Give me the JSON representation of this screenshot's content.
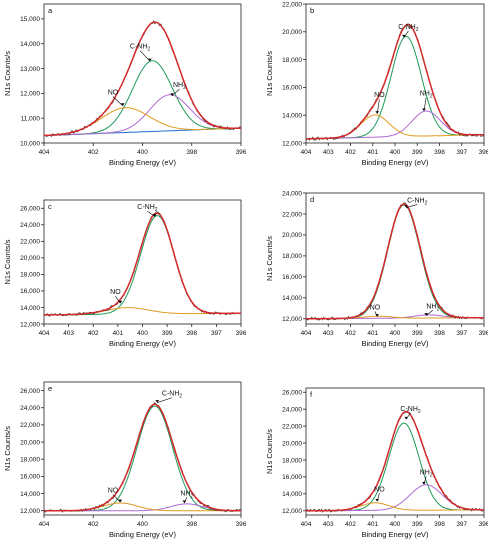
{
  "colors": {
    "measured": "#3a3a3a",
    "envelope": "#d42a2a",
    "c_nh2": "#1f9a5a",
    "nh2": "#b06ad4",
    "no": "#e39a1d",
    "background": "#1f6fd0",
    "axis": "#222222"
  },
  "chart_data": [
    {
      "panel": "a",
      "type": "line",
      "xlabel": "Binding Energy (eV)",
      "ylabel": "N1s Counts/s",
      "xlim": [
        404,
        396
      ],
      "x_ticks": [
        404,
        402,
        400,
        398,
        396
      ],
      "x_tick_labels": [
        "404",
        "402",
        "400",
        "398",
        "396"
      ],
      "ylim": [
        10000,
        15600
      ],
      "y_ticks": [
        10000,
        11000,
        12000,
        13000,
        14000,
        15000
      ],
      "y_tick_labels": [
        "10,000",
        "11,000",
        "12,000",
        "13,000",
        "14,000",
        "15,000"
      ],
      "baseline": {
        "x": [
          404,
          396
        ],
        "y": [
          10300,
          10600
        ]
      },
      "components": [
        {
          "name": "C-NH2",
          "label": "C-NH",
          "label_sub": "2",
          "color_key": "c_nh2",
          "center": 399.6,
          "height": 2850,
          "fwhm": 1.9,
          "label_at": [
            400.1,
            13800
          ],
          "arrow_to": [
            399.7,
            13300
          ]
        },
        {
          "name": "NH2",
          "label": "NH",
          "label_sub": "2",
          "color_key": "nh2",
          "center": 398.9,
          "height": 1450,
          "fwhm": 1.9,
          "label_at": [
            398.5,
            12250
          ],
          "arrow_to": [
            398.8,
            11900
          ]
        },
        {
          "name": "NO",
          "label": "NO",
          "label_sub": "",
          "color_key": "no",
          "center": 400.7,
          "height": 1000,
          "fwhm": 2.3,
          "label_at": [
            401.2,
            11950
          ],
          "arrow_to": [
            400.8,
            11500
          ]
        }
      ],
      "show_background": true,
      "show_components": true
    },
    {
      "panel": "b",
      "type": "line",
      "xlabel": "Binding Energy (eV)",
      "ylabel": "N1s Counts/s",
      "xlim": [
        404,
        396
      ],
      "x_ticks": [
        404,
        403,
        402,
        401,
        400,
        399,
        398,
        397,
        396
      ],
      "x_tick_labels": [
        "404",
        "403",
        "402",
        "401",
        "400",
        "399",
        "398",
        "397",
        "396"
      ],
      "ylim": [
        12000,
        22000
      ],
      "y_ticks": [
        12000,
        14000,
        16000,
        18000,
        20000,
        22000
      ],
      "y_tick_labels": [
        "12,000",
        "14,000",
        "16,000",
        "18,000",
        "20,000",
        "22,000"
      ],
      "baseline": {
        "x": [
          404,
          396
        ],
        "y": [
          12300,
          12600
        ]
      },
      "components": [
        {
          "name": "C-NH2",
          "label": "C-NH",
          "label_sub": "2",
          "color_key": "c_nh2",
          "center": 399.5,
          "height": 7200,
          "fwhm": 1.6,
          "label_at": [
            399.4,
            20200
          ],
          "arrow_to": [
            399.6,
            19600
          ]
        },
        {
          "name": "NH2",
          "label": "NH",
          "label_sub": "2",
          "color_key": "nh2",
          "center": 398.6,
          "height": 1800,
          "fwhm": 1.5,
          "label_at": [
            398.6,
            15400
          ],
          "arrow_to": [
            398.7,
            14300
          ]
        },
        {
          "name": "NO",
          "label": "NO",
          "label_sub": "",
          "color_key": "no",
          "center": 400.9,
          "height": 1600,
          "fwhm": 1.5,
          "label_at": [
            400.7,
            15300
          ],
          "arrow_to": [
            400.8,
            14100
          ]
        }
      ],
      "show_background": false,
      "show_components": true
    },
    {
      "panel": "c",
      "type": "line",
      "xlabel": "Binding Energy (eV)",
      "ylabel": "N1s Counts/s",
      "xlim": [
        404,
        396
      ],
      "x_ticks": [
        404,
        403,
        402,
        401,
        400,
        399,
        398,
        397,
        396
      ],
      "x_tick_labels": [
        "404",
        "403",
        "402",
        "401",
        "400",
        "399",
        "398",
        "397",
        "396"
      ],
      "ylim": [
        12000,
        27000
      ],
      "y_ticks": [
        12000,
        14000,
        16000,
        18000,
        20000,
        22000,
        24000,
        26000
      ],
      "y_tick_labels": [
        "12,000",
        "14,000",
        "16,000",
        "18,000",
        "20,000",
        "22,000",
        "24,000",
        "26,000"
      ],
      "baseline": {
        "x": [
          404,
          396
        ],
        "y": [
          13100,
          13300
        ]
      },
      "components": [
        {
          "name": "C-NH2",
          "label": "C-NH",
          "label_sub": "2",
          "color_key": "c_nh2",
          "center": 399.4,
          "height": 11900,
          "fwhm": 1.6,
          "label_at": [
            399.8,
            25900
          ],
          "arrow_to": [
            399.5,
            25000
          ]
        },
        {
          "name": "NO",
          "label": "NO",
          "label_sub": "",
          "color_key": "no",
          "center": 400.6,
          "height": 800,
          "fwhm": 2.0,
          "label_at": [
            401.1,
            15600
          ],
          "arrow_to": [
            400.9,
            14500
          ]
        }
      ],
      "show_background": false,
      "show_components": true
    },
    {
      "panel": "d",
      "type": "line",
      "xlabel": "Binding Energy (eV)",
      "ylabel": "N1s Counts/s",
      "xlim": [
        404,
        396
      ],
      "x_ticks": [
        404,
        403,
        402,
        401,
        400,
        399,
        398,
        397,
        396
      ],
      "x_tick_labels": [
        "404",
        "403",
        "402",
        "401",
        "400",
        "399",
        "398",
        "397",
        "396"
      ],
      "ylim": [
        11500,
        24000
      ],
      "y_ticks": [
        12000,
        14000,
        16000,
        18000,
        20000,
        22000,
        24000
      ],
      "y_tick_labels": [
        "12,000",
        "14,000",
        "16,000",
        "18,000",
        "20,000",
        "22,000",
        "24,000"
      ],
      "baseline": {
        "x": [
          404,
          396
        ],
        "y": [
          12000,
          12100
        ]
      },
      "components": [
        {
          "name": "C-NH2",
          "label": "C-NH",
          "label_sub": "2",
          "color_key": "c_nh2",
          "center": 399.6,
          "height": 10800,
          "fwhm": 1.7,
          "label_at": [
            399.0,
            23100
          ],
          "arrow_to": [
            399.5,
            22600
          ]
        },
        {
          "name": "NH2",
          "label": "NH",
          "label_sub": "2",
          "color_key": "nh2",
          "center": 398.5,
          "height": 300,
          "fwhm": 1.5,
          "label_at": [
            398.3,
            13000
          ],
          "arrow_to": [
            398.6,
            12300
          ]
        },
        {
          "name": "NO",
          "label": "NO",
          "label_sub": "",
          "color_key": "no",
          "center": 400.8,
          "height": 200,
          "fwhm": 1.5,
          "label_at": [
            400.9,
            12900
          ],
          "arrow_to": [
            400.8,
            12200
          ]
        }
      ],
      "show_background": false,
      "show_components": true
    },
    {
      "panel": "e",
      "type": "line",
      "xlabel": "Binding Energy (eV)",
      "ylabel": "N1s Counts/s",
      "xlim": [
        404,
        396
      ],
      "x_ticks": [
        404,
        402,
        400,
        398,
        396
      ],
      "x_tick_labels": [
        "404",
        "402",
        "400",
        "398",
        "396"
      ],
      "ylim": [
        11500,
        27000
      ],
      "y_ticks": [
        12000,
        14000,
        16000,
        18000,
        20000,
        22000,
        24000,
        26000
      ],
      "y_tick_labels": [
        "12,000",
        "14,000",
        "16,000",
        "18,000",
        "20,000",
        "22,000",
        "24,000",
        "26,000"
      ],
      "baseline": {
        "x": [
          404,
          396
        ],
        "y": [
          12000,
          12000
        ]
      },
      "components": [
        {
          "name": "C-NH2",
          "label": "C-NH",
          "label_sub": "2",
          "color_key": "c_nh2",
          "center": 399.5,
          "height": 12200,
          "fwhm": 1.7,
          "label_at": [
            398.8,
            25400
          ],
          "arrow_to": [
            399.4,
            24600
          ]
        },
        {
          "name": "NH2",
          "label": "NH",
          "label_sub": "2",
          "color_key": "nh2",
          "center": 398.2,
          "height": 800,
          "fwhm": 1.5,
          "label_at": [
            398.2,
            13800
          ],
          "arrow_to": [
            398.3,
            12900
          ]
        },
        {
          "name": "NO",
          "label": "NO",
          "label_sub": "",
          "color_key": "no",
          "center": 400.9,
          "height": 900,
          "fwhm": 1.6,
          "label_at": [
            401.2,
            14100
          ],
          "arrow_to": [
            400.9,
            13000
          ]
        }
      ],
      "show_background": false,
      "show_components": true
    },
    {
      "panel": "f",
      "type": "line",
      "xlabel": "Binding Energy (eV)",
      "ylabel": "N1s Counts/s",
      "xlim": [
        404,
        396
      ],
      "x_ticks": [
        404,
        403,
        402,
        401,
        400,
        399,
        398,
        397,
        396
      ],
      "x_tick_labels": [
        "404",
        "403",
        "402",
        "401",
        "400",
        "399",
        "398",
        "397",
        "396"
      ],
      "ylim": [
        11500,
        26500
      ],
      "y_ticks": [
        12000,
        14000,
        16000,
        18000,
        20000,
        22000,
        24000,
        26000
      ],
      "y_tick_labels": [
        "12,000",
        "14,000",
        "16,000",
        "18,000",
        "20,000",
        "22,000",
        "24,000",
        "26,000"
      ],
      "baseline": {
        "x": [
          404,
          396
        ],
        "y": [
          12000,
          12100
        ]
      },
      "components": [
        {
          "name": "C-NH2",
          "label": "C-NH",
          "label_sub": "2",
          "color_key": "c_nh2",
          "center": 399.6,
          "height": 10300,
          "fwhm": 1.6,
          "label_at": [
            399.3,
            23800
          ],
          "arrow_to": [
            399.5,
            22800
          ]
        },
        {
          "name": "NH2",
          "label": "NH",
          "label_sub": "2",
          "color_key": "nh2",
          "center": 398.6,
          "height": 3000,
          "fwhm": 1.7,
          "label_at": [
            398.6,
            16300
          ],
          "arrow_to": [
            398.7,
            15100
          ]
        },
        {
          "name": "NO",
          "label": "NO",
          "label_sub": "",
          "color_key": "no",
          "center": 400.9,
          "height": 900,
          "fwhm": 1.5,
          "label_at": [
            400.7,
            14300
          ],
          "arrow_to": [
            400.8,
            13100
          ]
        }
      ],
      "show_background": false,
      "show_components": true
    }
  ]
}
